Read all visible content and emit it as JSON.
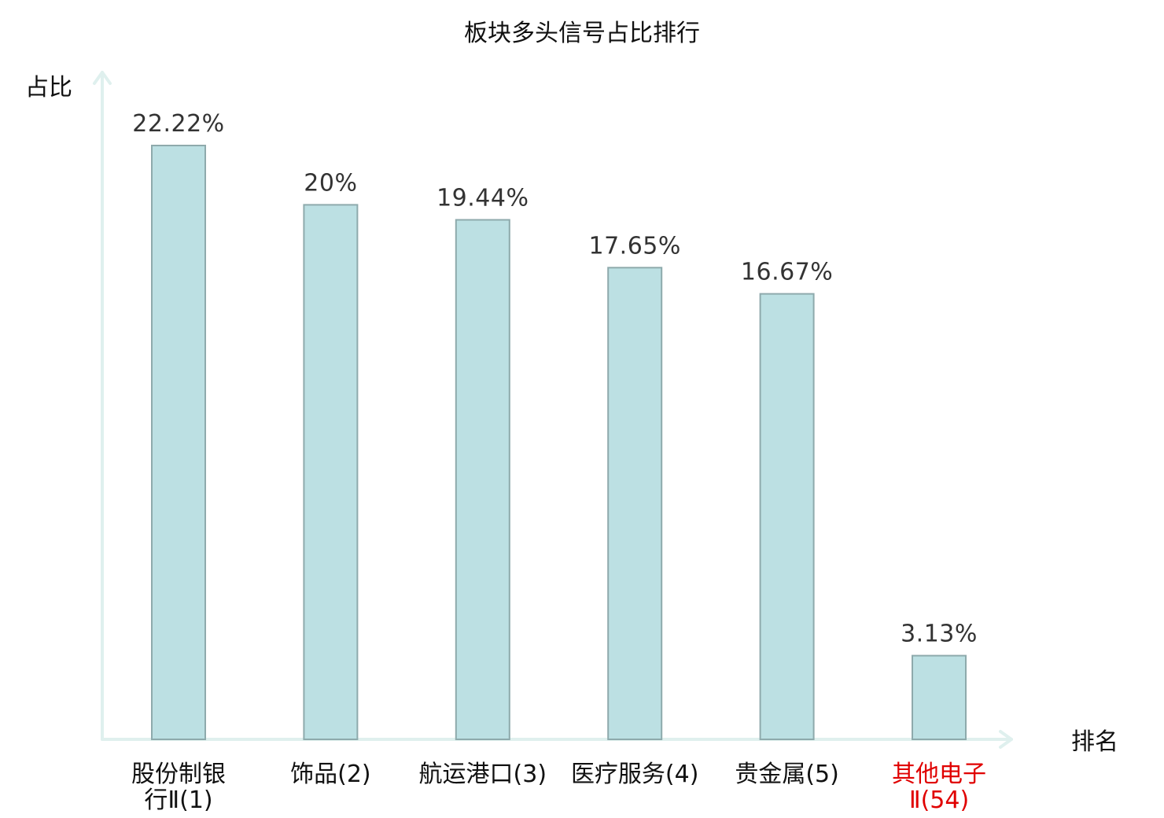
{
  "chart_data": {
    "type": "bar",
    "title": "板块多头信号占比排行",
    "xlabel": "排名",
    "ylabel": "占比",
    "ylim": [
      0,
      25
    ],
    "grid": false,
    "legend": "none",
    "categories": [
      "股份制银行Ⅱ(1)",
      "饰品(2)",
      "航运港口(3)",
      "医疗服务(4)",
      "贵金属(5)",
      "其他电子Ⅱ(54)"
    ],
    "category_lines": [
      [
        "股份制银",
        "行Ⅱ(1)"
      ],
      [
        "饰品(2)"
      ],
      [
        "航运港口(3)"
      ],
      [
        "医疗服务(4)"
      ],
      [
        "贵金属(5)"
      ],
      [
        "其他电子",
        "Ⅱ(54)"
      ]
    ],
    "values": [
      22.22,
      20,
      19.44,
      17.65,
      16.67,
      3.13
    ],
    "value_labels": [
      "22.22%",
      "20%",
      "19.44%",
      "17.65%",
      "16.67%",
      "3.13%"
    ],
    "highlight_index": 5,
    "colors": {
      "bar_fill": "#bce0e3",
      "bar_stroke": "#8eaaac",
      "axis": "#dff0ee",
      "highlight_text": "#e00000"
    }
  }
}
